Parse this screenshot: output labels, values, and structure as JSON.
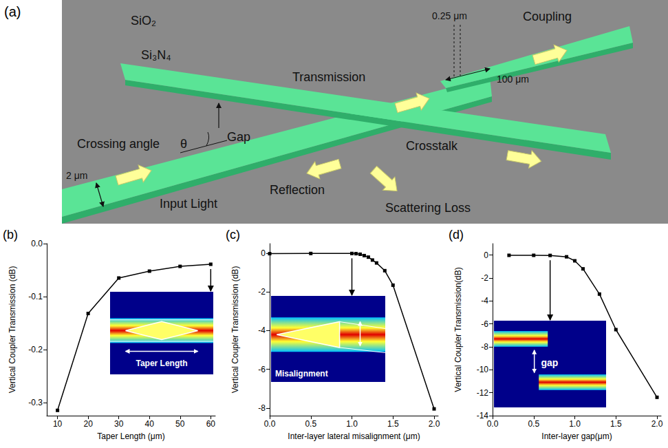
{
  "diagram": {
    "panel_label": "(a)",
    "labels": {
      "cladding": "SiO₂",
      "core": "Si₃N₄",
      "transmission": "Transmission",
      "coupling": "Coupling",
      "tip_width": "0.25 μm",
      "taper_length": "100 μm",
      "crossing_angle": "Crossing angle",
      "theta": "θ",
      "gap": "Gap",
      "crosstalk": "Crosstalk",
      "width": "2 μm",
      "input": "Input Light",
      "reflection": "Reflection",
      "scattering": "Scattering Loss"
    }
  },
  "chart_data": [
    {
      "type": "line",
      "panel_label": "(b)",
      "x_label": "Taper Length (μm)",
      "y_label": "Vertical Coupler Transmission (dB)",
      "x": [
        10,
        20,
        30,
        40,
        50,
        60
      ],
      "values": [
        -0.315,
        -0.132,
        -0.065,
        -0.052,
        -0.043,
        -0.039
      ],
      "color": "#000000",
      "marker": "square",
      "grid": false,
      "xlim": [
        6.5,
        61.5
      ],
      "xticks": [
        10,
        20,
        30,
        40,
        50,
        60
      ],
      "ylim": [
        -0.325,
        0
      ],
      "yticks": [
        {
          "value": 0,
          "label": "0.0"
        },
        -0.1,
        -0.2,
        -0.3
      ],
      "inset_label": "Taper Length",
      "inset_point": 60
    },
    {
      "type": "line",
      "panel_label": "(c)",
      "x_label": "Inter-layer lateral misalignment (μm)",
      "y_label": "Vertical Coupler Transmission (dB)",
      "x": [
        0,
        0.5,
        1.0,
        1.05,
        1.1,
        1.15,
        1.2,
        1.25,
        1.3,
        1.4,
        1.5,
        2.0
      ],
      "values": [
        -0.02,
        -0.01,
        -0.01,
        -0.02,
        -0.05,
        -0.12,
        -0.2,
        -0.35,
        -0.5,
        -0.9,
        -1.65,
        -8.05
      ],
      "color": "#000000",
      "marker": "square",
      "grid": false,
      "xlim": [
        0,
        2.05
      ],
      "xticks": [
        {
          "value": 0,
          "label": "0.0"
        },
        0.5,
        {
          "value": 1,
          "label": "1.0"
        },
        1.5,
        {
          "value": 2,
          "label": "2.0"
        }
      ],
      "ylim": [
        -8.4,
        0.5
      ],
      "yticks": [
        0,
        -2,
        -4,
        -6,
        -8
      ],
      "inset_label": "Misalignment",
      "inset_point": 1.0
    },
    {
      "type": "line",
      "panel_label": "(d)",
      "x_label": "Inter-layer gap(μm)",
      "y_label": "Vertical Coupler Transmission(dB)",
      "x": [
        0.2,
        0.5,
        0.7,
        0.9,
        1.0,
        1.1,
        1.3,
        1.5,
        2.0
      ],
      "values": [
        -0.02,
        -0.02,
        -0.03,
        -0.15,
        -0.5,
        -1.2,
        -3.4,
        -6.5,
        -12.4
      ],
      "color": "#000000",
      "marker": "square",
      "grid": false,
      "xlim": [
        0,
        2.05
      ],
      "xticks": [
        {
          "value": 0,
          "label": "0.0"
        },
        0.5,
        {
          "value": 1,
          "label": "1.0"
        },
        1.5,
        {
          "value": 2,
          "label": "2.0"
        }
      ],
      "ylim": [
        -14,
        1
      ],
      "yticks": [
        0,
        -2,
        -4,
        -6,
        -8,
        -10,
        -12,
        -14
      ],
      "inset_label": "gap",
      "inset_point": 0.7
    }
  ]
}
